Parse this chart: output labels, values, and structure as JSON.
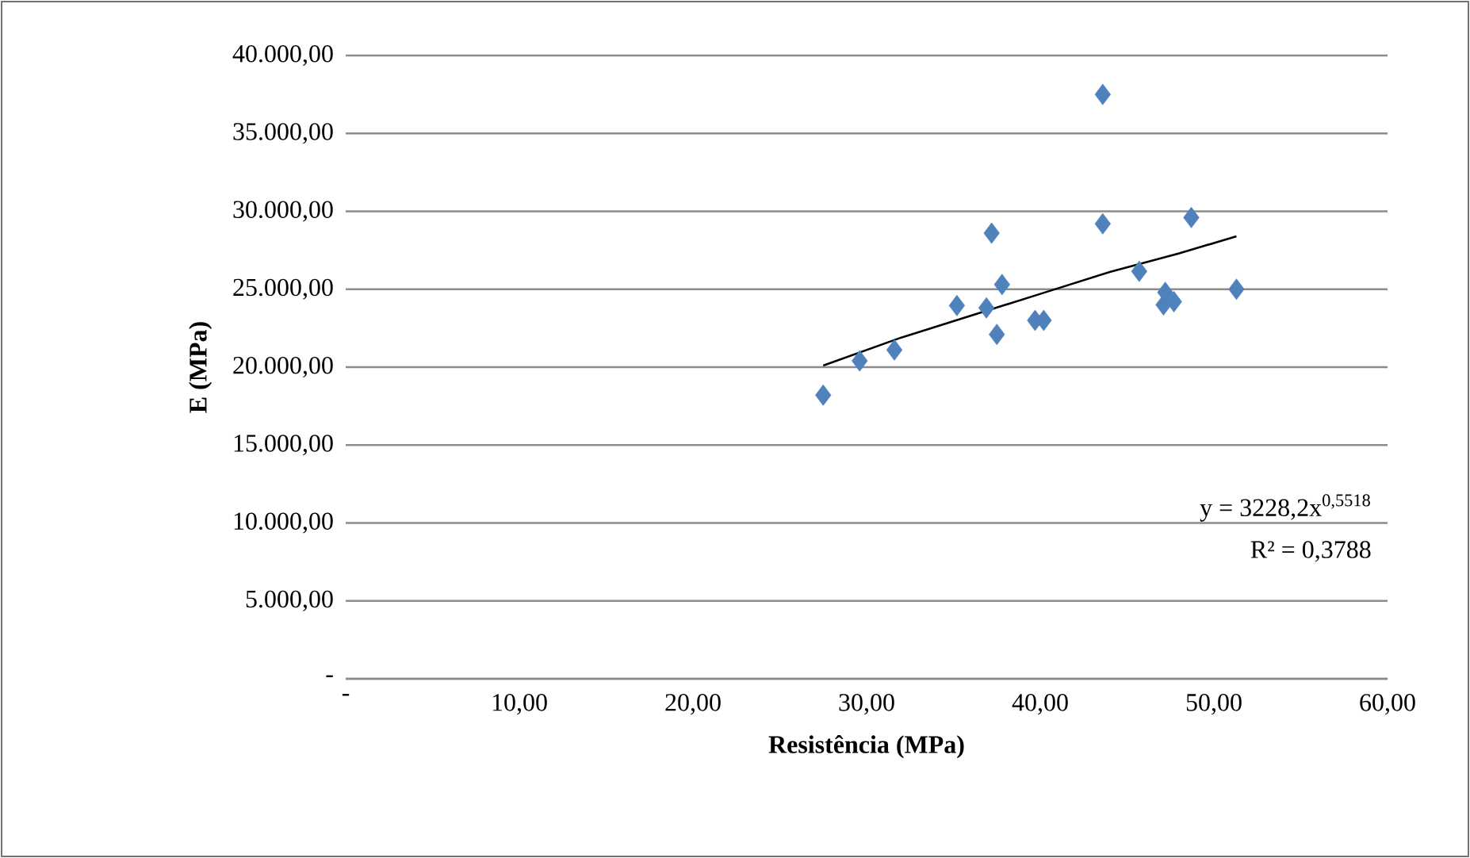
{
  "chart_data": {
    "type": "scatter",
    "xlabel": "Resistência (MPa)",
    "ylabel": "E (MPa)",
    "xlim": [
      0,
      60
    ],
    "ylim": [
      0,
      40000
    ],
    "xticks": [
      {
        "value": 0,
        "label": "-"
      },
      {
        "value": 10,
        "label": "10,00"
      },
      {
        "value": 20,
        "label": "20,00"
      },
      {
        "value": 30,
        "label": "30,00"
      },
      {
        "value": 40,
        "label": "40,00"
      },
      {
        "value": 50,
        "label": "50,00"
      },
      {
        "value": 60,
        "label": "60,00"
      }
    ],
    "yticks": [
      {
        "value": 0,
        "label": "-"
      },
      {
        "value": 5000,
        "label": "5.000,00"
      },
      {
        "value": 10000,
        "label": "10.000,00"
      },
      {
        "value": 15000,
        "label": "15.000,00"
      },
      {
        "value": 20000,
        "label": "20.000,00"
      },
      {
        "value": 25000,
        "label": "25.000,00"
      },
      {
        "value": 30000,
        "label": "30.000,00"
      },
      {
        "value": 35000,
        "label": "35.000,00"
      },
      {
        "value": 40000,
        "label": "40.000,00"
      }
    ],
    "grid": "y",
    "legend": false,
    "series": [
      {
        "color": "#4f81bd",
        "marker": "diamond",
        "x": [
          27.5,
          29.6,
          31.6,
          35.2,
          36.9,
          37.2,
          37.8,
          37.5,
          39.7,
          40.2,
          43.6,
          43.6,
          45.7,
          47.1,
          47.2,
          47.7,
          48.7,
          51.3
        ],
        "values": [
          18200,
          20400,
          21100,
          23950,
          23800,
          28600,
          25300,
          22100,
          23000,
          23000,
          37500,
          29200,
          26150,
          24000,
          24800,
          24200,
          29600,
          25000
        ]
      },
      {
        "type": "line",
        "color": "#000000",
        "marker": "none",
        "line_style": "solid",
        "x": [
          27.5,
          32,
          36,
          40,
          44,
          48,
          51.3
        ],
        "values": [
          20100,
          21900,
          23300,
          24700,
          26100,
          27300,
          28400
        ]
      }
    ],
    "annotations": [
      "y = 3228,2x$^{0,5518}$",
      "R² = 0,3788"
    ]
  }
}
